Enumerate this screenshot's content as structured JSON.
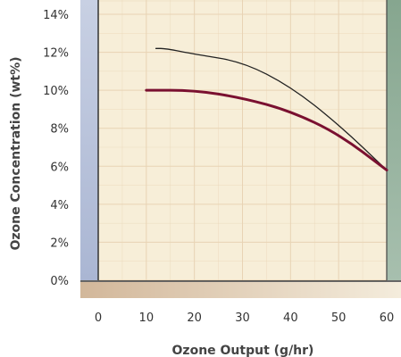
{
  "chart_data": {
    "type": "line",
    "title": "",
    "xlabel": "Ozone Output (g/hr)",
    "ylabel": "Ozone Concentration (wt%)",
    "xlim": [
      0,
      60
    ],
    "ylim": [
      0,
      14
    ],
    "x_ticks": [
      0,
      10,
      20,
      30,
      40,
      50,
      60
    ],
    "x_tick_labels": [
      "0",
      "10",
      "20",
      "30",
      "40",
      "50",
      "60"
    ],
    "y_ticks": [
      0,
      2,
      4,
      6,
      8,
      10,
      12,
      14
    ],
    "y_tick_labels": [
      "0%",
      "2%",
      "4%",
      "6%",
      "8%",
      "10%",
      "12%",
      "14%"
    ],
    "grid": true,
    "series": [
      {
        "color": "#222222",
        "x": [
          12,
          14,
          20,
          30,
          40,
          50,
          60
        ],
        "y": [
          12.2,
          12.2,
          11.9,
          11.5,
          10.2,
          8.2,
          5.8
        ]
      },
      {
        "color": "#7a1030",
        "x": [
          10,
          20,
          30,
          40,
          50,
          60
        ],
        "y": [
          10.0,
          10.0,
          9.6,
          8.9,
          7.7,
          5.8
        ]
      }
    ]
  },
  "colors": {
    "plot_background": "#f7eed8",
    "grid": "#e8d3b4",
    "left_band": "#b9c4dc",
    "right_band": "#8fae99",
    "bottom_band_left": "#d2b79a",
    "bottom_band_right": "#f4ecdc"
  }
}
